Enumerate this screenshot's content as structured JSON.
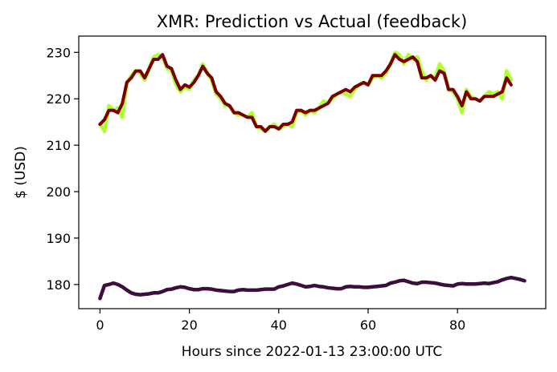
{
  "chart_data": {
    "type": "line",
    "title": "XMR: Prediction vs Actual (feedback)",
    "xlabel": "Hours since 2022-01-13 23:00:00 UTC",
    "ylabel": "$ (USD)",
    "xlim": [
      -4.75,
      99.75
    ],
    "ylim": [
      174.8,
      233.5
    ],
    "xticks": [
      0,
      20,
      40,
      60,
      80
    ],
    "yticks": [
      180,
      190,
      200,
      210,
      220,
      230
    ],
    "grid": false,
    "legend": "none",
    "series": [
      {
        "color": "#adff2f",
        "values": [
          214.5,
          213.0,
          218.5,
          217.5,
          218.0,
          216.0,
          223.5,
          225.0,
          226.0,
          225.5,
          224.0,
          226.5,
          229.0,
          229.5,
          229.0,
          226.5,
          226.0,
          223.0,
          221.5,
          222.5,
          222.0,
          224.0,
          225.0,
          227.5,
          225.5,
          224.0,
          221.0,
          220.0,
          218.5,
          218.5,
          217.0,
          216.5,
          216.5,
          216.0,
          217.0,
          214.0,
          213.5,
          213.0,
          214.0,
          214.5,
          213.5,
          214.0,
          214.5,
          214.0,
          217.0,
          217.5,
          216.5,
          217.5,
          217.0,
          218.0,
          219.5,
          219.0,
          220.0,
          221.0,
          221.5,
          221.0,
          220.5,
          222.0,
          223.0,
          223.5,
          223.0,
          224.5,
          225.0,
          224.5,
          225.5,
          227.5,
          230.0,
          229.5,
          227.5,
          229.5,
          228.5,
          229.0,
          226.0,
          224.0,
          225.0,
          224.5,
          227.5,
          226.0,
          222.0,
          221.5,
          220.0,
          217.0,
          222.0,
          220.5,
          220.0,
          219.5,
          220.5,
          221.5,
          221.0,
          221.5,
          220.0,
          226.0,
          224.0
        ],
        "stroke_width": 4.5
      },
      {
        "color": "#7a0000",
        "values": [
          214.5,
          215.5,
          217.5,
          217.5,
          217.0,
          219.0,
          223.5,
          224.5,
          226.0,
          226.0,
          224.5,
          226.5,
          228.5,
          228.5,
          229.5,
          227.0,
          226.5,
          224.0,
          222.0,
          223.0,
          222.5,
          223.5,
          225.0,
          227.0,
          225.5,
          224.5,
          221.5,
          220.5,
          219.0,
          218.5,
          217.0,
          217.0,
          216.5,
          216.0,
          216.0,
          214.0,
          214.0,
          213.0,
          214.0,
          214.0,
          213.5,
          214.5,
          214.5,
          215.0,
          217.5,
          217.5,
          217.0,
          217.5,
          217.5,
          218.0,
          218.5,
          219.0,
          220.5,
          221.0,
          221.5,
          222.0,
          221.5,
          222.5,
          223.0,
          223.5,
          223.0,
          225.0,
          225.0,
          225.0,
          226.0,
          227.5,
          229.5,
          228.5,
          228.0,
          228.5,
          229.0,
          228.0,
          224.5,
          224.5,
          225.0,
          224.0,
          226.0,
          225.5,
          222.0,
          222.0,
          220.5,
          218.5,
          221.5,
          220.0,
          220.0,
          219.5,
          220.5,
          220.5,
          220.5,
          221.0,
          221.5,
          224.5,
          223.0
        ],
        "stroke_width": 4
      },
      {
        "color": "#3b0f3b",
        "values": [
          177.0,
          179.8,
          180.0,
          180.3,
          180.0,
          179.5,
          178.8,
          178.2,
          177.9,
          177.8,
          177.9,
          178.0,
          178.2,
          178.2,
          178.5,
          178.9,
          179.0,
          179.3,
          179.5,
          179.4,
          179.1,
          178.9,
          178.9,
          179.1,
          179.1,
          179.0,
          178.8,
          178.7,
          178.6,
          178.5,
          178.5,
          178.8,
          178.9,
          178.8,
          178.8,
          178.8,
          178.9,
          179.0,
          179.0,
          179.0,
          179.5,
          179.7,
          180.0,
          180.3,
          180.1,
          179.8,
          179.5,
          179.6,
          179.8,
          179.6,
          179.5,
          179.3,
          179.2,
          179.1,
          179.1,
          179.5,
          179.6,
          179.5,
          179.5,
          179.4,
          179.4,
          179.5,
          179.6,
          179.7,
          179.8,
          180.3,
          180.5,
          180.8,
          180.9,
          180.6,
          180.3,
          180.2,
          180.5,
          180.5,
          180.4,
          180.3,
          180.1,
          179.9,
          179.8,
          179.7,
          180.1,
          180.2,
          180.1,
          180.1,
          180.1,
          180.2,
          180.3,
          180.2,
          180.4,
          180.6,
          181.0,
          181.3,
          181.5,
          181.3,
          181.1,
          180.8
        ],
        "stroke_width": 4.5
      }
    ]
  }
}
